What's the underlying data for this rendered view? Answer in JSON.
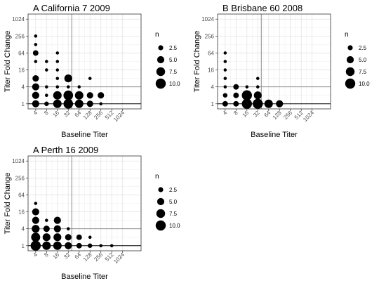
{
  "chart_data": [
    {
      "type": "scatter",
      "title": "A California 7 2009",
      "xlabel": "Baseline Titer",
      "ylabel": "Titer Fold Change",
      "x_ticks": [
        "4",
        "8",
        "16",
        "32",
        "64",
        "128",
        "256",
        "512",
        "1024"
      ],
      "y_ticks": [
        "1",
        "4",
        "16",
        "64",
        "256",
        "1024"
      ],
      "scale": "log2",
      "reference_lines": {
        "x": 40,
        "y": 4
      },
      "legend": {
        "title": "n",
        "labels": [
          "2.5",
          "5.0",
          "7.5",
          "10.0"
        ],
        "values": [
          2.5,
          5.0,
          7.5,
          10.0
        ],
        "placement": "right"
      },
      "points": [
        {
          "x": 4,
          "y": 256,
          "n": 1
        },
        {
          "x": 4,
          "y": 128,
          "n": 1
        },
        {
          "x": 4,
          "y": 64,
          "n": 3
        },
        {
          "x": 4,
          "y": 32,
          "n": 1
        },
        {
          "x": 4,
          "y": 8,
          "n": 4
        },
        {
          "x": 4,
          "y": 4,
          "n": 5
        },
        {
          "x": 4,
          "y": 2,
          "n": 5
        },
        {
          "x": 4,
          "y": 1,
          "n": 5
        },
        {
          "x": 8,
          "y": 32,
          "n": 1
        },
        {
          "x": 8,
          "y": 16,
          "n": 1
        },
        {
          "x": 8,
          "y": 4,
          "n": 1
        },
        {
          "x": 8,
          "y": 2,
          "n": 1
        },
        {
          "x": 8,
          "y": 1,
          "n": 2
        },
        {
          "x": 16,
          "y": 64,
          "n": 1
        },
        {
          "x": 16,
          "y": 32,
          "n": 1
        },
        {
          "x": 16,
          "y": 16,
          "n": 1
        },
        {
          "x": 16,
          "y": 8,
          "n": 1
        },
        {
          "x": 16,
          "y": 4,
          "n": 1
        },
        {
          "x": 16,
          "y": 2,
          "n": 7
        },
        {
          "x": 16,
          "y": 1,
          "n": 7
        },
        {
          "x": 32,
          "y": 8,
          "n": 6
        },
        {
          "x": 32,
          "y": 4,
          "n": 1
        },
        {
          "x": 32,
          "y": 2,
          "n": 9
        },
        {
          "x": 32,
          "y": 1,
          "n": 9
        },
        {
          "x": 64,
          "y": 4,
          "n": 1
        },
        {
          "x": 64,
          "y": 2,
          "n": 7
        },
        {
          "x": 64,
          "y": 1,
          "n": 7
        },
        {
          "x": 128,
          "y": 8,
          "n": 1
        },
        {
          "x": 128,
          "y": 2,
          "n": 4
        },
        {
          "x": 128,
          "y": 1,
          "n": 4
        },
        {
          "x": 256,
          "y": 2,
          "n": 4
        },
        {
          "x": 256,
          "y": 1,
          "n": 1
        }
      ]
    },
    {
      "type": "scatter",
      "title": "B Brisbane 60 2008",
      "xlabel": "Baseline Titer",
      "ylabel": "Titer Fold Change",
      "x_ticks": [
        "4",
        "8",
        "16",
        "32",
        "64",
        "128",
        "256",
        "512",
        "1024"
      ],
      "y_ticks": [
        "1",
        "4",
        "16",
        "64",
        "256",
        "1024"
      ],
      "scale": "log2",
      "reference_lines": {
        "x": 40,
        "y": 4
      },
      "legend": {
        "title": "n",
        "labels": [
          "2.5",
          "5.0",
          "7.5",
          "10.0"
        ],
        "values": [
          2.5,
          5.0,
          7.5,
          10.0
        ],
        "placement": "right"
      },
      "points": [
        {
          "x": 4,
          "y": 64,
          "n": 1
        },
        {
          "x": 4,
          "y": 32,
          "n": 1
        },
        {
          "x": 4,
          "y": 16,
          "n": 1
        },
        {
          "x": 4,
          "y": 8,
          "n": 1
        },
        {
          "x": 4,
          "y": 4,
          "n": 1
        },
        {
          "x": 4,
          "y": 2,
          "n": 2
        },
        {
          "x": 4,
          "y": 1,
          "n": 3
        },
        {
          "x": 8,
          "y": 4,
          "n": 3
        },
        {
          "x": 8,
          "y": 2,
          "n": 3
        },
        {
          "x": 8,
          "y": 1,
          "n": 3
        },
        {
          "x": 16,
          "y": 4,
          "n": 1
        },
        {
          "x": 16,
          "y": 2,
          "n": 10
        },
        {
          "x": 16,
          "y": 1,
          "n": 10
        },
        {
          "x": 32,
          "y": 8,
          "n": 1
        },
        {
          "x": 32,
          "y": 4,
          "n": 1
        },
        {
          "x": 32,
          "y": 2,
          "n": 6
        },
        {
          "x": 32,
          "y": 1,
          "n": 10
        },
        {
          "x": 64,
          "y": 1,
          "n": 7
        },
        {
          "x": 128,
          "y": 1,
          "n": 5
        }
      ]
    },
    {
      "type": "scatter",
      "title": "A Perth 16 2009",
      "xlabel": "Baseline Titer",
      "ylabel": "Titer Fold Change",
      "x_ticks": [
        "4",
        "8",
        "16",
        "32",
        "64",
        "128",
        "256",
        "512",
        "1024"
      ],
      "y_ticks": [
        "1",
        "4",
        "16",
        "64",
        "256",
        "1024"
      ],
      "scale": "log2",
      "reference_lines": {
        "x": 40,
        "y": 4
      },
      "legend": {
        "title": "n",
        "labels": [
          "2.5",
          "5.0",
          "7.5",
          "10.0"
        ],
        "values": [
          2.5,
          5.0,
          7.5,
          10.0
        ],
        "placement": "right"
      },
      "points": [
        {
          "x": 4,
          "y": 32,
          "n": 1
        },
        {
          "x": 4,
          "y": 16,
          "n": 5
        },
        {
          "x": 4,
          "y": 8,
          "n": 5
        },
        {
          "x": 4,
          "y": 4,
          "n": 6
        },
        {
          "x": 4,
          "y": 2,
          "n": 8
        },
        {
          "x": 4,
          "y": 1,
          "n": 10
        },
        {
          "x": 8,
          "y": 8,
          "n": 1
        },
        {
          "x": 8,
          "y": 4,
          "n": 4
        },
        {
          "x": 8,
          "y": 2,
          "n": 6
        },
        {
          "x": 8,
          "y": 1,
          "n": 7
        },
        {
          "x": 16,
          "y": 8,
          "n": 5
        },
        {
          "x": 16,
          "y": 4,
          "n": 5
        },
        {
          "x": 16,
          "y": 2,
          "n": 6
        },
        {
          "x": 16,
          "y": 1,
          "n": 7
        },
        {
          "x": 32,
          "y": 4,
          "n": 1
        },
        {
          "x": 32,
          "y": 2,
          "n": 4
        },
        {
          "x": 32,
          "y": 1,
          "n": 5
        },
        {
          "x": 64,
          "y": 2,
          "n": 3
        },
        {
          "x": 64,
          "y": 1,
          "n": 3
        },
        {
          "x": 128,
          "y": 2,
          "n": 1
        },
        {
          "x": 128,
          "y": 1,
          "n": 2
        },
        {
          "x": 256,
          "y": 1,
          "n": 1
        },
        {
          "x": 512,
          "y": 1,
          "n": 1
        }
      ]
    }
  ]
}
